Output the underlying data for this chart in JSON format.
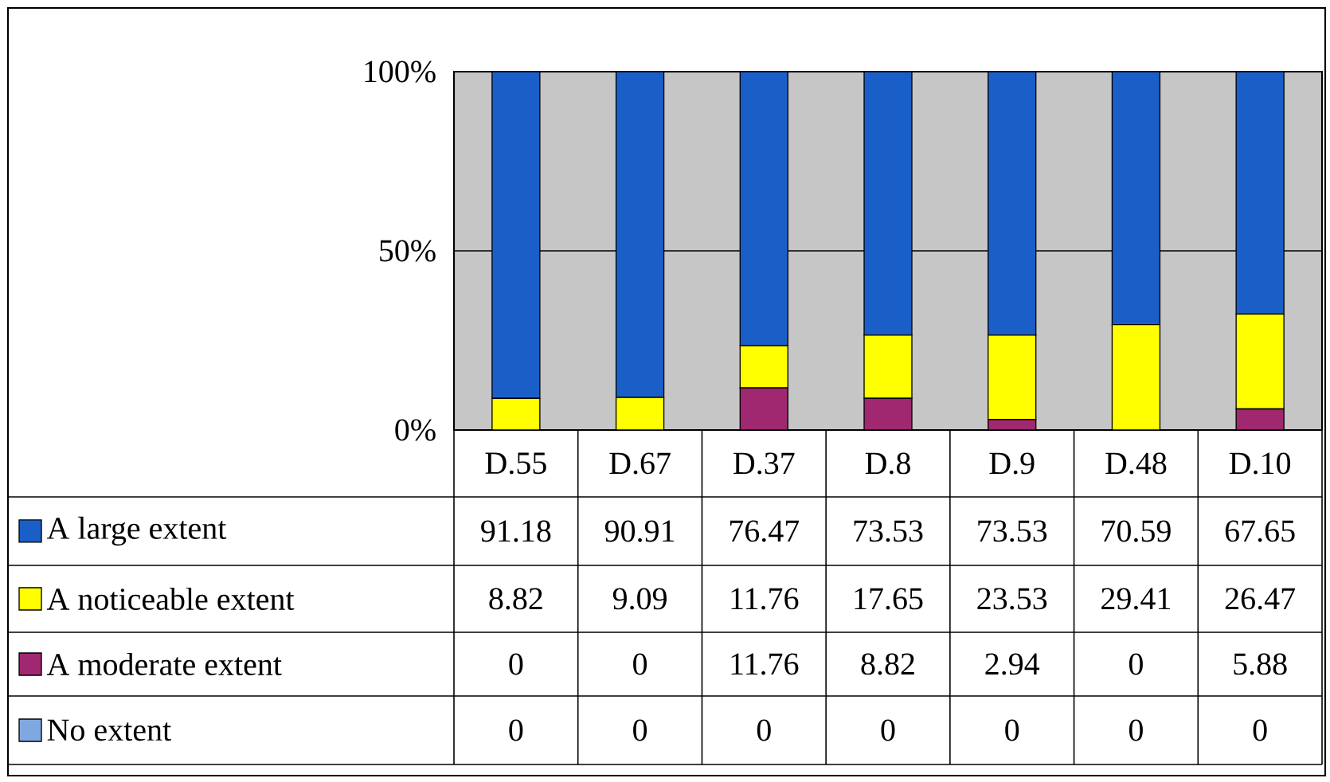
{
  "chart_data": {
    "type": "bar",
    "stacked": true,
    "categories": [
      "D.55",
      "D.67",
      "D.37",
      "D.8",
      "D.9",
      "D.48",
      "D.10"
    ],
    "series": [
      {
        "name": "No extent",
        "color": "#7fa8e0",
        "values": [
          0,
          0,
          0,
          0,
          0,
          0,
          0
        ]
      },
      {
        "name": "A moderate extent",
        "color": "#a02870",
        "values": [
          0,
          0,
          11.76,
          8.82,
          2.94,
          0,
          5.88
        ]
      },
      {
        "name": "A noticeable extent",
        "color": "#ffff00",
        "values": [
          8.82,
          9.09,
          11.76,
          17.65,
          23.53,
          29.41,
          26.47
        ]
      },
      {
        "name": "A large extent",
        "color": "#1a5fc8",
        "values": [
          91.18,
          90.91,
          76.47,
          73.53,
          73.53,
          70.59,
          67.65
        ]
      }
    ],
    "ylim": [
      0,
      100
    ],
    "yticks": [
      {
        "value": 0,
        "label": "0%"
      },
      {
        "value": 50,
        "label": "50%"
      },
      {
        "value": 100,
        "label": "100%"
      }
    ],
    "grid": "y",
    "legend": "bottom left",
    "data_labels": true
  }
}
